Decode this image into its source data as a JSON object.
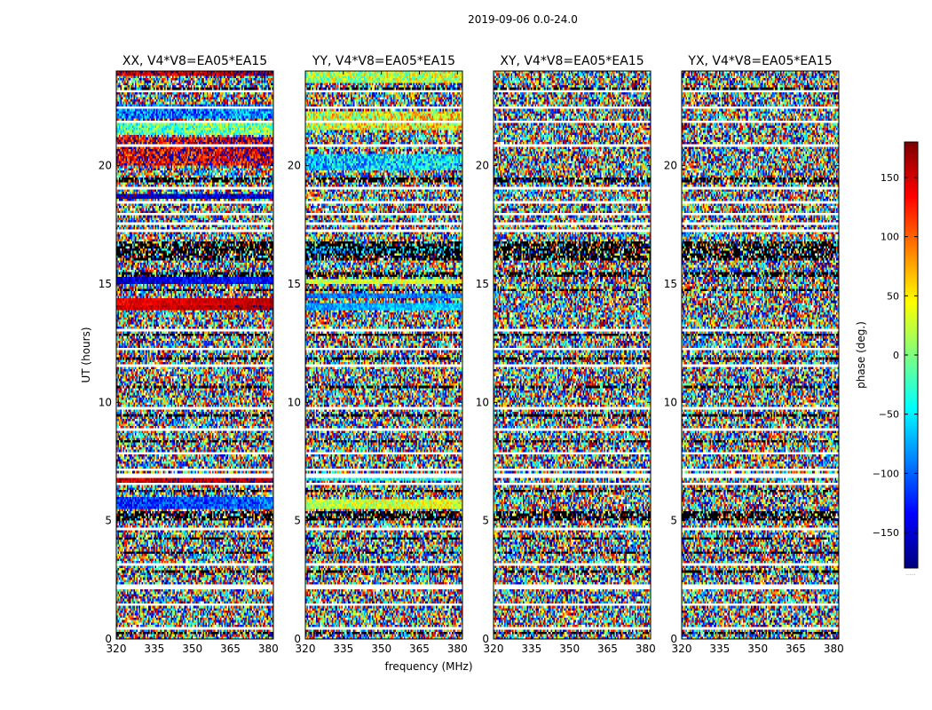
{
  "figure_title": "2019-09-06 0.0-24.0",
  "colors": {
    "frame": "#000000",
    "background": "#ffffff",
    "gap": "#ffffff",
    "flagged": "#000000"
  },
  "chart_data": {
    "type": "heatmap",
    "title": "2019-09-06 0.0-24.0",
    "xlabel": "frequency (MHz)",
    "ylabel": "UT (hours)",
    "xlim": [
      320,
      382
    ],
    "ylim": [
      0,
      24
    ],
    "xticks": [
      "320",
      "335",
      "350",
      "365",
      "380"
    ],
    "xtick_values": [
      320,
      335,
      350,
      365,
      380
    ],
    "yticks": [
      "0",
      "5",
      "10",
      "15",
      "20"
    ],
    "ytick_values": [
      0,
      5,
      10,
      15,
      20
    ],
    "colormap": "jet",
    "colorbar": {
      "label": "phase (deg.)",
      "range": [
        -180,
        180
      ],
      "ticks": [
        "−150",
        "−100",
        "−50",
        "0",
        "50",
        "100",
        "150"
      ],
      "tick_values": [
        -150,
        -100,
        -50,
        0,
        50,
        100,
        150
      ],
      "footnote": "......"
    },
    "panels": [
      {
        "title": "XX, V4*V8=EA05*EA15",
        "coherent_bands": [
          {
            "t0": 20.0,
            "t1": 21.2,
            "phase": 150,
            "spread": 70
          },
          {
            "t0": 21.3,
            "t1": 21.8,
            "phase": -10,
            "spread": 60
          },
          {
            "t0": 22.0,
            "t1": 22.6,
            "phase": -90,
            "spread": 60
          },
          {
            "t0": 23.8,
            "t1": 24.0,
            "phase": 160,
            "spread": 40
          },
          {
            "t0": 18.65,
            "t1": 18.8,
            "phase": -150,
            "spread": 30
          },
          {
            "t0": 15.0,
            "t1": 15.3,
            "phase": -140,
            "spread": 30
          },
          {
            "t0": 14.15,
            "t1": 14.35,
            "phase": 150,
            "spread": 20
          },
          {
            "t0": 13.9,
            "t1": 14.1,
            "phase": 160,
            "spread": 20
          },
          {
            "t0": 6.5,
            "t1": 6.8,
            "phase": 160,
            "spread": 30
          },
          {
            "t0": 5.5,
            "t1": 6.0,
            "phase": -110,
            "spread": 40
          },
          {
            "t0": 2.2,
            "t1": 2.35,
            "phase": -150,
            "spread": 30
          }
        ]
      },
      {
        "title": "YY, V4*V8=EA05*EA15",
        "coherent_bands": [
          {
            "t0": 23.5,
            "t1": 24.0,
            "phase": 20,
            "spread": 60
          },
          {
            "t0": 21.5,
            "t1": 22.3,
            "phase": 40,
            "spread": 70
          },
          {
            "t0": 19.8,
            "t1": 20.5,
            "phase": -60,
            "spread": 60
          },
          {
            "t0": 16.3,
            "t1": 16.6,
            "phase": -60,
            "spread": 40
          },
          {
            "t0": 15.0,
            "t1": 15.2,
            "phase": 30,
            "spread": 30
          },
          {
            "t0": 14.4,
            "t1": 14.6,
            "phase": -90,
            "spread": 30
          },
          {
            "t0": 13.9,
            "t1": 14.2,
            "phase": -70,
            "spread": 30
          },
          {
            "t0": 6.7,
            "t1": 7.0,
            "phase": -40,
            "spread": 40
          },
          {
            "t0": 5.5,
            "t1": 5.9,
            "phase": 30,
            "spread": 40
          }
        ]
      },
      {
        "title": "XY, V4*V8=EA05*EA15",
        "coherent_bands": []
      },
      {
        "title": "YX, V4*V8=EA05*EA15",
        "coherent_bands": []
      }
    ],
    "flagged_time_gaps_hours": [
      [
        23.1,
        23.2
      ],
      [
        22.4,
        22.5
      ],
      [
        21.8,
        21.9
      ],
      [
        20.8,
        20.9
      ],
      [
        19.0,
        19.1
      ],
      [
        18.4,
        18.5
      ],
      [
        17.9,
        18.0
      ],
      [
        17.55,
        17.62
      ],
      [
        17.2,
        17.28
      ],
      [
        13.0,
        13.08
      ],
      [
        12.2,
        12.28
      ],
      [
        11.5,
        11.6
      ],
      [
        9.7,
        9.8
      ],
      [
        8.8,
        8.86
      ],
      [
        7.8,
        7.95
      ],
      [
        7.1,
        7.2
      ],
      [
        6.85,
        6.95
      ],
      [
        6.5,
        6.6
      ],
      [
        4.6,
        4.7
      ],
      [
        3.1,
        3.2
      ],
      [
        2.1,
        2.25
      ],
      [
        1.4,
        1.5
      ],
      [
        0.45,
        0.55
      ]
    ],
    "dark_time_bands_hours": [
      [
        23.25,
        23.32
      ],
      [
        19.35,
        19.5
      ],
      [
        16.0,
        16.8
      ],
      [
        15.3,
        15.5
      ],
      [
        14.7,
        14.8
      ],
      [
        12.8,
        12.9
      ],
      [
        11.8,
        11.9
      ],
      [
        10.6,
        10.7
      ],
      [
        9.4,
        9.5
      ],
      [
        8.3,
        8.4
      ],
      [
        6.2,
        6.3
      ],
      [
        5.0,
        5.4
      ],
      [
        4.2,
        4.3
      ],
      [
        3.6,
        3.7
      ],
      [
        2.8,
        2.9
      ],
      [
        0.2,
        0.3
      ]
    ]
  }
}
